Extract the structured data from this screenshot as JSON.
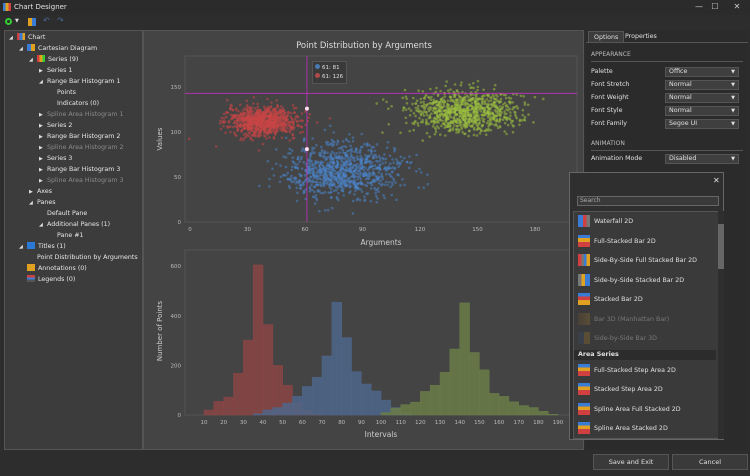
{
  "window": {
    "title": "Chart Designer",
    "controls": [
      "—",
      "☐",
      "✕"
    ]
  },
  "tree": [
    {
      "label": "Chart",
      "level": 0,
      "arrow": "open",
      "icon": "chart-icon"
    },
    {
      "label": "Cartesian Diagram",
      "level": 1,
      "arrow": "open",
      "icon": "diagram-icon"
    },
    {
      "label": "Series (9)",
      "level": 2,
      "arrow": "open",
      "icon": "series-icon"
    },
    {
      "label": "Series 1",
      "level": 3,
      "arrow": "closed"
    },
    {
      "label": "Range Bar Histogram 1",
      "level": 3,
      "arrow": "open"
    },
    {
      "label": "Points",
      "level": 4
    },
    {
      "label": "Indicators (0)",
      "level": 4
    },
    {
      "label": "Spline Area Histogram 1",
      "level": 3,
      "arrow": "closed",
      "disabled": true
    },
    {
      "label": "Series 2",
      "level": 3,
      "arrow": "closed"
    },
    {
      "label": "Range Bar Histogram 2",
      "level": 3,
      "arrow": "closed"
    },
    {
      "label": "Spline Area Histogram 2",
      "level": 3,
      "arrow": "closed",
      "disabled": true
    },
    {
      "label": "Series 3",
      "level": 3,
      "arrow": "closed"
    },
    {
      "label": "Range Bar Histogram 3",
      "level": 3,
      "arrow": "closed"
    },
    {
      "label": "Spline Area Histogram 3",
      "level": 3,
      "arrow": "closed",
      "disabled": true
    },
    {
      "label": "Axes",
      "level": 2,
      "arrow": "closed"
    },
    {
      "label": "Panes",
      "level": 2,
      "arrow": "open"
    },
    {
      "label": "Default Pane",
      "level": 3
    },
    {
      "label": "Additional Panes (1)",
      "level": 3,
      "arrow": "open"
    },
    {
      "label": "Pane #1",
      "level": 4
    },
    {
      "label": "Titles (1)",
      "level": 1,
      "arrow": "open",
      "icon": "title-icon"
    },
    {
      "label": "Point Distribution by Arguments",
      "level": 2
    },
    {
      "label": "Annotations (0)",
      "level": 1,
      "icon": "annotation-icon"
    },
    {
      "label": "Legends (0)",
      "level": 1,
      "icon": "legend-icon"
    }
  ],
  "chart": {
    "title": "Point Distribution by Arguments",
    "tooltip": [
      {
        "text": "61: 81",
        "color": "#4a78b0"
      },
      {
        "text": "61: 126",
        "color": "#b04a4a"
      }
    ],
    "crosshair": {
      "x": 61,
      "y": 143
    },
    "colors": {
      "red": "#c84646",
      "blue": "#4a84c8",
      "green": "#9ac040"
    }
  },
  "chart_data": [
    {
      "type": "scatter",
      "xlabel": "Arguments",
      "ylabel": "Values",
      "xlim": [
        -2,
        185
      ],
      "ylim": [
        0,
        185
      ],
      "xticks": [
        0,
        30,
        60,
        90,
        120,
        150,
        180
      ],
      "yticks": [
        0,
        50,
        100,
        150
      ],
      "clusters": [
        {
          "color": "red",
          "center": [
            38,
            112
          ],
          "spread": [
            9,
            8
          ]
        },
        {
          "color": "blue",
          "center": [
            80,
            57
          ],
          "spread": [
            15,
            15
          ]
        },
        {
          "color": "green",
          "center": [
            142,
            122
          ],
          "spread": [
            14,
            12
          ]
        }
      ]
    },
    {
      "type": "bar",
      "xlabel": "Intervals",
      "ylabel": "Number of Points",
      "bin_width": 5,
      "xlim": [
        5,
        195
      ],
      "ylim": [
        0,
        600
      ],
      "xticks": [
        10,
        20,
        30,
        40,
        50,
        60,
        70,
        80,
        90,
        100,
        110,
        120,
        130,
        140,
        150,
        160,
        170,
        180,
        190
      ],
      "yticks": [
        0,
        200,
        400,
        600
      ],
      "series": [
        {
          "color": "#8a4545",
          "start": 10,
          "values": [
            20,
            55,
            72,
            168,
            302,
            605,
            365,
            200,
            120,
            50,
            20,
            5
          ]
        },
        {
          "color": "#4e668a",
          "start": 35,
          "values": [
            5,
            20,
            30,
            48,
            75,
            115,
            152,
            238,
            455,
            312,
            175,
            125,
            97,
            60,
            30,
            10
          ]
        },
        {
          "color": "#6a7c48",
          "start": 100,
          "values": [
            10,
            28,
            42,
            52,
            95,
            120,
            172,
            266,
            452,
            252,
            182,
            87,
            75,
            53,
            38,
            30,
            15,
            3
          ]
        }
      ]
    }
  ],
  "right": {
    "tabs": [
      "Options",
      "Properties"
    ],
    "appearance": "APPEARANCE",
    "rows": [
      {
        "label": "Palette",
        "value": "Office"
      },
      {
        "label": "Font Stretch",
        "value": "Normal"
      },
      {
        "label": "Font Weight",
        "value": "Normal"
      },
      {
        "label": "Font Style",
        "value": "Normal"
      },
      {
        "label": "Font Family",
        "value": "Segoe UI"
      }
    ],
    "animation": "ANIMATION",
    "anim_row": {
      "label": "Animation Mode",
      "value": "Disabled"
    }
  },
  "popup": {
    "search_placeholder": "Search",
    "close": "✕",
    "items": [
      {
        "label": "Waterfall 2D"
      },
      {
        "label": "Full-Stacked Bar 2D"
      },
      {
        "label": "Side-By-Side Full Stacked Bar 2D"
      },
      {
        "label": "Side-by-Side Stacked Bar 2D"
      },
      {
        "label": "Stacked Bar 2D"
      },
      {
        "label": "Bar 3D (Manhattan Bar)",
        "disabled": true
      },
      {
        "label": "Side-by-Side Bar 3D",
        "disabled": true
      }
    ],
    "group": "Area Series",
    "area_items": [
      {
        "label": "Full-Stacked Step Area 2D"
      },
      {
        "label": "Stacked Step Area 2D"
      },
      {
        "label": "Spline Area Full Stacked 2D"
      },
      {
        "label": "Spline Area Stacked 2D"
      }
    ]
  },
  "buttons": {
    "save": "Save and Exit",
    "cancel": "Cancel"
  }
}
